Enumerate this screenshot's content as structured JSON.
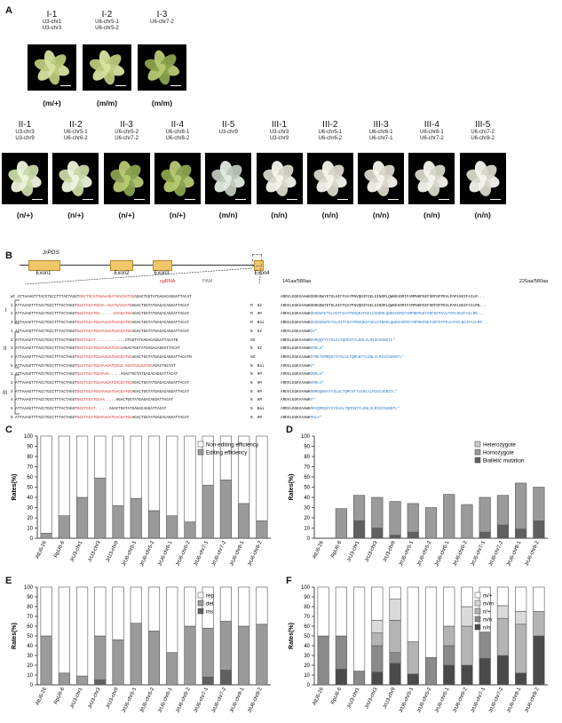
{
  "panels": {
    "A": "A",
    "B": "B",
    "C": "C",
    "D": "D",
    "E": "E",
    "F": "F"
  },
  "panelA": {
    "row1": [
      {
        "title": "I-1",
        "sub": [
          "U3-chr1",
          "U3-chr3"
        ],
        "genotype": "(m/+)",
        "photo": "light-green"
      },
      {
        "title": "I-2",
        "sub": [
          "U6-chr5-1",
          "U6-chr5-2"
        ],
        "genotype": "(m/m)",
        "photo": "light-green"
      },
      {
        "title": "I-3",
        "sub": [
          "U6-chr7-2"
        ],
        "genotype": "(m/m)",
        "photo": "green"
      }
    ],
    "row2": [
      {
        "title": "II-1",
        "sub": [
          "U3-chr3",
          "U3-chr9"
        ],
        "genotype": "(n/+)",
        "photo": "variegated"
      },
      {
        "title": "II-2",
        "sub": [
          "U6-chr5-1",
          "U6-chr6-2"
        ],
        "genotype": "(n/+)",
        "photo": "variegated"
      },
      {
        "title": "II-3",
        "sub": [
          "U6-chr5-2",
          "U6-chr7-2"
        ],
        "genotype": "(n/+)",
        "photo": "green"
      },
      {
        "title": "II-4",
        "sub": [
          "U6-chr8-1",
          "U6-chr8-2"
        ],
        "genotype": "(n/+)",
        "photo": "green"
      },
      {
        "title": "II-5",
        "sub": [
          "U3-chr9"
        ],
        "genotype": "(m/n)",
        "photo": "pale"
      },
      {
        "title": "III-1",
        "sub": [
          "U3-chr3",
          "U3-chr9"
        ],
        "genotype": "(n/n)",
        "photo": "albino"
      },
      {
        "title": "III-2",
        "sub": [
          "U6-chr5-1",
          "U6-chr6-2"
        ],
        "genotype": "(n/n)",
        "photo": "albino"
      },
      {
        "title": "III-3",
        "sub": [
          "U6-chr6-1",
          "U6-chr7-1"
        ],
        "genotype": "(n/n)",
        "photo": "albino"
      },
      {
        "title": "III-4",
        "sub": [
          "U6-chr8-1",
          "U6-chr7-2"
        ],
        "genotype": "(n/n)",
        "photo": "albino"
      },
      {
        "title": "III-5",
        "sub": [
          "U6-chr7-2",
          "U6-chr8-2"
        ],
        "genotype": "(n/n)",
        "photo": "albino"
      }
    ]
  },
  "panelB": {
    "gene": "JrPDS",
    "exons": [
      "Exon1",
      "Exon2",
      "Exon3",
      "Exon4"
    ],
    "sgrna_label": "sgRNA",
    "pam_label": "PAM",
    "pos_left": "141aa/580aa",
    "pos_right": "226aa/580aa",
    "wt_label": "Wt",
    "groups": [
      "I",
      "II",
      "III"
    ],
    "seq_rows": [
      {
        "id": "Wt",
        "pre": "ATTAAAGTTTACCTGCCTTTACTAGGT",
        "mid": "GGCTGCATGGAAAGATGACGATGG",
        "post": "AGACTGGTATGAGACAGGATTACAT",
        "zyg": "",
        "prot": "ARDVLGGKVAAWKDDDGDWYETGLHIFFGAYPNVQNIFGELGINDRLQWKEHSMIFAMPNKPGEFSRFDFPEVLPAPLNGIFAILR...",
        "b": ""
      },
      {
        "id": "1",
        "pre": "ATTAAAGTTTACCTGCCTTTACTAGGT",
        "mid": "GGCTGCATGGAA-AGATGACGAT",
        "post": "GAGACTGGTATGAGACAGGATTACAT",
        "zyg": "M  HZ",
        "prot": "ARDVLGGKVAAWKDDDGDWYETGLHIFFGAYPNVQNIFGELGINDRLQWKEHSMIFAMPNKPGEFSRFDFPEVLPAPLNGIFAILRN...",
        "b": ""
      },
      {
        "id": "2",
        "pre": "ATTAAAGTTTACCTGCCTTTACTAGGT",
        "mid": "GGCTGCATGG......GACGATGG",
        "post": "AGACTGGTATGAGACAGGATTACAT",
        "zyg": "M  HM",
        "prot": "ARDVLGGKVAAWK",
        "b": "DDGDWYETGLHIFFGAYPNVQNIFGELGINDRLQWKEHSMIFAMPNKPGEFSRFDFPEVLPAPLNGIFAILRN..."
      },
      {
        "id": "3",
        "pre": "ATTAAAGTTTACCTGCCTTTACTAGGT",
        "mid": "GGCTGCATGGAAAGATGACGATGG",
        "post": "AGACTGGTATGAGACAGGATTACAT",
        "zyg": "M  Bai",
        "prot": "ARDVLGGKVAAWK",
        "b": "DDGDGDWYETGLHIFFGAYPNVQNIFGELGINDRLQWKEHSMIFAMPNKPGEFSRFDFPEVLPAPLNGIFAILRN..."
      },
      {
        "id": "1",
        "pre": "ATTAAAGTTTACCTGCCTTTACTAGGT",
        "mid": "GGCTGCATGGAAAGATGACGATGG",
        "post": "AGACTGGTATGAGACAGGATTACAT",
        "zyg": "N  HZ",
        "prot": "ARDVLGGKVAAWK",
        "b": "DV*"
      },
      {
        "id": "2",
        "pre": "ATTAAAGTTTACCTGCCTTTACTAGGT",
        "mid": "GGCTGCAT..........",
        "post": "...CTGGTATGAGACAGGATTACATN",
        "zyg": "HZ",
        "prot": "ARDVLGGKVAAWK",
        "b": "RSMQQVYIYSLGLTQMCNTYLENLVLMIGCSGNSTL*"
      },
      {
        "id": "3",
        "pre": "ATTAAAGTTTACCTGCCTTTACTAGGT",
        "mid": "GGCTGCATGGAAAGATGACG",
        "post": "AGACTGGTATGAGACAGGATTACAT",
        "zyg": "N  HZ",
        "prot": "ARDVLGGKVAAWK",
        "b": "KMKLV*"
      },
      {
        "id": "4",
        "pre": "ATTAAAGTTTACCTGCCTTTACTAGGT",
        "mid": "GGCTGCATGGAAAGATGACGATGG",
        "post": "AGACTGGTATGAGACAGGATTACATN",
        "zyg": "HZ",
        "prot": "ARDVLGGKVAAWK",
        "b": "DTMETGMRQSYIYSLGLTQMCNTYLENLVLMIGCSGNSTL*"
      },
      {
        "id": "5",
        "pre": "ATTAAAGTTTACCTGCCTTTACTAGGT",
        "mid": "GGCTGCATGGAAAGATGACG:AGATGACGATGG",
        "post": "AGACTGGTAT",
        "zyg": "N  Bai",
        "prot": "ARDVLGGKVAAWK",
        "b": "V*"
      },
      {
        "id": "1",
        "pre": "ATTAAAGTTTACCTGCCTTTACTAGGT",
        "mid": "GGCTGCATGGAAAG.....",
        "post": "AGACTGGTATGAGACAGGATTACAT",
        "zyg": "N  HM",
        "prot": "ARDVLGGKVAAWK",
        "b": "DNKLV*"
      },
      {
        "id": "2",
        "pre": "ATTAAAGTTTACCTGCCTTTACTAGGT",
        "mid": "GGCTGCATGGAAAGATGACGATGG",
        "post": "AGACTGGTATGAGACAGGATTACAT",
        "zyg": "N  HM",
        "prot": "ARDVLGGKVAAWK",
        "b": "KMKLV*"
      },
      {
        "id": "3",
        "pre": "ATTAAAGTTTACCTGCCTTTACTAGGT",
        "mid": "GGCTGCATGGAAAGATGACGATGG",
        "post": "AGACTGGTATGAGACAGGATTACAT",
        "zyg": "N  HM",
        "prot": "ARDVLGGKVAAWK",
        "b": "RNMSQWNYIYSLGLTQMCNTYLENLVLMIGCSGNSTL*"
      },
      {
        "id": "4",
        "pre": "ATTAAAGTTTACCTGCCTTTACTAGGT",
        "mid": "GGCTGCATGGAA.....",
        "post": "AGACTGGTATGAGACAGGATTACAT",
        "zyg": "N  HM",
        "prot": "ARDVLGGKVAAWK",
        "b": "V*"
      },
      {
        "id": "5",
        "pre": "ATTAAAGTTTACCTGCCTTTACTAGGT",
        "mid": "GGCTGCAT......",
        "post": "AGACTGGTATGAGACAGGATTACAT",
        "zyg": "N  Bai",
        "prot": "ARDVLGGKVAAWK",
        "b": "RKVQMRQSYIYSLGLTQMCNTYLENLVLMIGCSGNSTL*"
      },
      {
        "id": "6",
        "pre": "ATTAAAGTTTACCTGCCTTTACTAGGT",
        "mid": "GGCTGCATGGAAAGATGACGATGG",
        "post": "AGACTGGTATGAGACAGGATTACAT",
        "zyg": "N  HM",
        "prot": "ARDVLGGKVAAWK",
        "b": "RNLV*"
      }
    ]
  },
  "chart_data": [
    {
      "panel": "C",
      "type": "bar",
      "stacked": true,
      "categories": [
        "AtU6-26",
        "RpU6-6",
        "JrU3-chr1",
        "JrU3-chr3",
        "JrU3-chr9",
        "JrU6-chr5-1",
        "JrU6-chr5-2",
        "JrU6-chr6-1",
        "JrU6-chr6-2",
        "JrU6-chr7-1",
        "JrU6-chr7-2",
        "JrU6-chr8-1",
        "JrU6-chr8-2"
      ],
      "ylabel": "Rates(%)",
      "ylim": [
        0,
        100
      ],
      "yticks": [
        0,
        10,
        20,
        30,
        40,
        50,
        60,
        70,
        80,
        90,
        100
      ],
      "legend_position": "top-right",
      "series": [
        {
          "name": "Editing efficiency",
          "color": "#9a9a9a",
          "values": [
            5,
            22,
            40,
            59,
            32,
            39,
            27,
            22,
            16,
            52,
            57,
            34,
            17
          ]
        },
        {
          "name": "Non-editing efficiency",
          "color": "#ffffff",
          "values": [
            95,
            78,
            60,
            41,
            68,
            61,
            73,
            78,
            84,
            48,
            43,
            66,
            83
          ]
        }
      ]
    },
    {
      "panel": "D",
      "type": "bar",
      "stacked": true,
      "categories": [
        "AtU6-26",
        "RpU6-6",
        "JrU3-chr1",
        "JrU3-chr3",
        "JrU3-chr9",
        "JrU6-chr5-1",
        "JrU6-chr5-2",
        "JrU6-chr6-1",
        "JrU6-chr6-2",
        "JrU6-chr7-1",
        "JrU6-chr7-2",
        "JrU6-chr8-1",
        "JrU6-chr8-2"
      ],
      "ylabel": "Rates(%)",
      "ylim": [
        0,
        100
      ],
      "yticks": [
        0,
        10,
        20,
        30,
        40,
        50,
        60,
        70,
        80,
        90,
        100
      ],
      "legend_position": "top-right",
      "series": [
        {
          "name": "Biallelic mutation",
          "color": "#606060",
          "values": [
            0,
            0,
            17,
            10,
            3,
            6,
            0,
            0,
            0,
            6,
            13,
            9,
            17
          ]
        },
        {
          "name": "Homozygote",
          "color": "#9a9a9a",
          "values": [
            0,
            29,
            25,
            30,
            33,
            28,
            30,
            43,
            33,
            34,
            29,
            45,
            33
          ]
        },
        {
          "name": "Heterozygote",
          "color": "#cfcfcf",
          "values": [
            0,
            0,
            0,
            0,
            0,
            0,
            0,
            0,
            0,
            0,
            0,
            0,
            0
          ]
        }
      ]
    },
    {
      "panel": "E",
      "type": "bar",
      "stacked": true,
      "categories": [
        "AtU6-26",
        "RpU6-6",
        "JrU3-chr1",
        "JrU3-chr3",
        "JrU3-chr9",
        "JrU6-chr5-1",
        "JrU6-chr5-2",
        "JrU6-chr6-1",
        "JrU6-chr6-2",
        "JrU6-chr7-1",
        "JrU6-chr7-2",
        "JrU6-chr8-1",
        "JrU6-chr8-2"
      ],
      "ylabel": "Rates(%)",
      "ylim": [
        0,
        100
      ],
      "yticks": [
        0,
        10,
        20,
        30,
        40,
        50,
        60,
        70,
        80,
        90,
        100
      ],
      "legend_position": "top-right",
      "series": [
        {
          "name": "ins",
          "color": "#606060",
          "values": [
            0,
            0,
            0,
            5,
            0,
            0,
            0,
            0,
            0,
            8,
            15,
            0,
            0
          ]
        },
        {
          "name": "del",
          "color": "#9a9a9a",
          "values": [
            50,
            12,
            9,
            45,
            46,
            63,
            55,
            33,
            60,
            50,
            50,
            60,
            62
          ]
        },
        {
          "name": "rep",
          "color": "#ffffff",
          "values": [
            50,
            88,
            91,
            50,
            54,
            37,
            45,
            67,
            40,
            42,
            35,
            40,
            38
          ]
        }
      ]
    },
    {
      "panel": "F",
      "type": "bar",
      "stacked": true,
      "categories": [
        "AtU6-26",
        "RpU6-6",
        "JrU3-chr1",
        "JrU3-chr3",
        "JrU3-chr9",
        "JrU6-chr5-1",
        "JrU6-chr5-2",
        "JrU6-chr6-1",
        "JrU6-chr6-2",
        "JrU6-chr7-1",
        "JrU6-chr7-2",
        "JrU6-chr8-1",
        "JrU6-chr8-2"
      ],
      "ylabel": "Rates(%)",
      "ylim": [
        0,
        100
      ],
      "yticks": [
        0,
        10,
        20,
        30,
        40,
        50,
        60,
        70,
        80,
        90,
        100
      ],
      "legend_position": "top-right",
      "series": [
        {
          "name": "n/n",
          "color": "#4a4a4a",
          "values": [
            0,
            16,
            0,
            13,
            22,
            11,
            0,
            20,
            20,
            27,
            30,
            12,
            50
          ]
        },
        {
          "name": "m/n",
          "color": "#8a8a8a",
          "values": [
            50,
            34,
            14,
            27,
            11,
            0,
            28,
            20,
            0,
            27,
            0,
            0,
            0
          ]
        },
        {
          "name": "n/+",
          "color": "#b4b4b4",
          "values": [
            0,
            0,
            0,
            13,
            33,
            33,
            0,
            20,
            40,
            0,
            38,
            50,
            25
          ]
        },
        {
          "name": "m/m",
          "color": "#dadada",
          "values": [
            0,
            0,
            0,
            13,
            22,
            0,
            0,
            0,
            20,
            0,
            13,
            13,
            0
          ]
        },
        {
          "name": "m/+",
          "color": "#ffffff",
          "values": [
            50,
            50,
            86,
            34,
            12,
            56,
            72,
            40,
            20,
            46,
            19,
            25,
            25
          ]
        }
      ]
    }
  ]
}
